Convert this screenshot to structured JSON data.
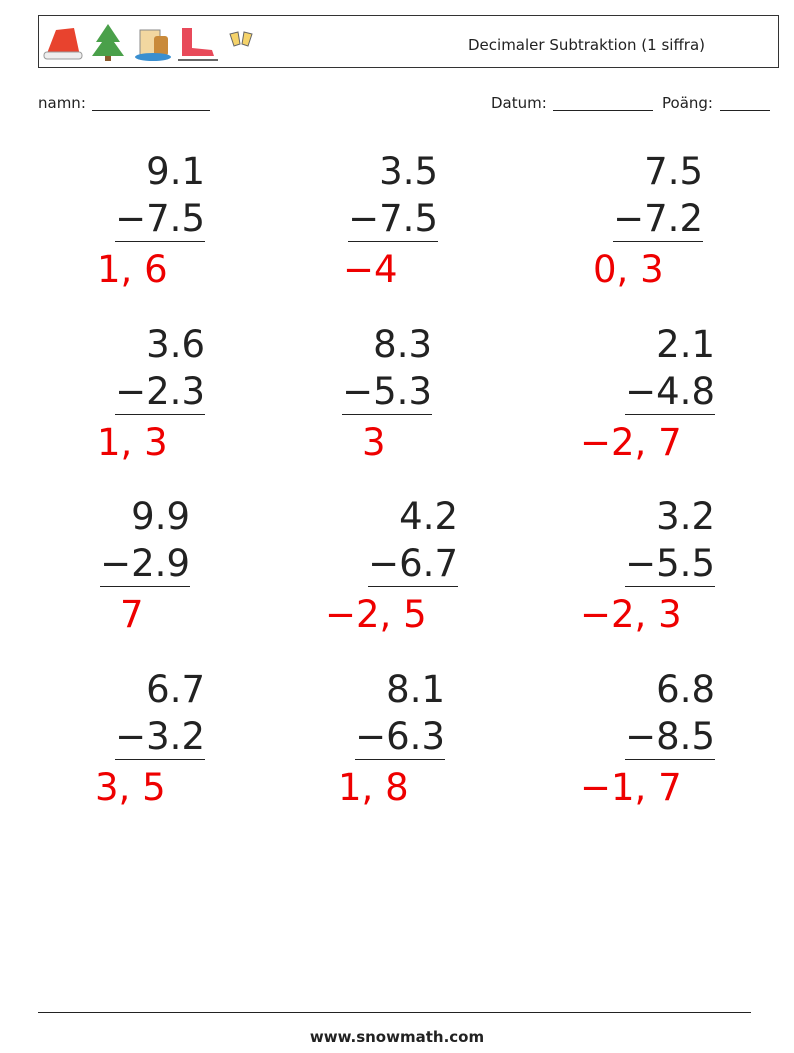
{
  "header": {
    "title": "Decimaler Subtraktion (1 siffra)"
  },
  "fields": {
    "name": "namn:",
    "date": "Datum:",
    "score": "Poäng:"
  },
  "problems": [
    [
      {
        "top": "9.1",
        "bottom": "−7.5",
        "answer": "1, 6"
      },
      {
        "top": "3.5",
        "bottom": "−7.5",
        "answer": "−4"
      },
      {
        "top": "7.5",
        "bottom": "−7.2",
        "answer": "0, 3"
      }
    ],
    [
      {
        "top": "3.6",
        "bottom": "−2.3",
        "answer": "1, 3"
      },
      {
        "top": "8.3",
        "bottom": "−5.3",
        "answer": "3"
      },
      {
        "top": "2.1",
        "bottom": "−4.8",
        "answer": "−2, 7"
      }
    ],
    [
      {
        "top": "9.9",
        "bottom": "−2.9",
        "answer": "7"
      },
      {
        "top": "4.2",
        "bottom": "−6.7",
        "answer": "−2, 5"
      },
      {
        "top": "3.2",
        "bottom": "−5.5",
        "answer": "−2, 3"
      }
    ],
    [
      {
        "top": "6.7",
        "bottom": "−3.2",
        "answer": "3, 5"
      },
      {
        "top": "8.1",
        "bottom": "−6.3",
        "answer": "1, 8"
      },
      {
        "top": "6.8",
        "bottom": "−8.5",
        "answer": "−1, 7"
      }
    ]
  ],
  "footer": {
    "url": "www.snowmath.com"
  }
}
